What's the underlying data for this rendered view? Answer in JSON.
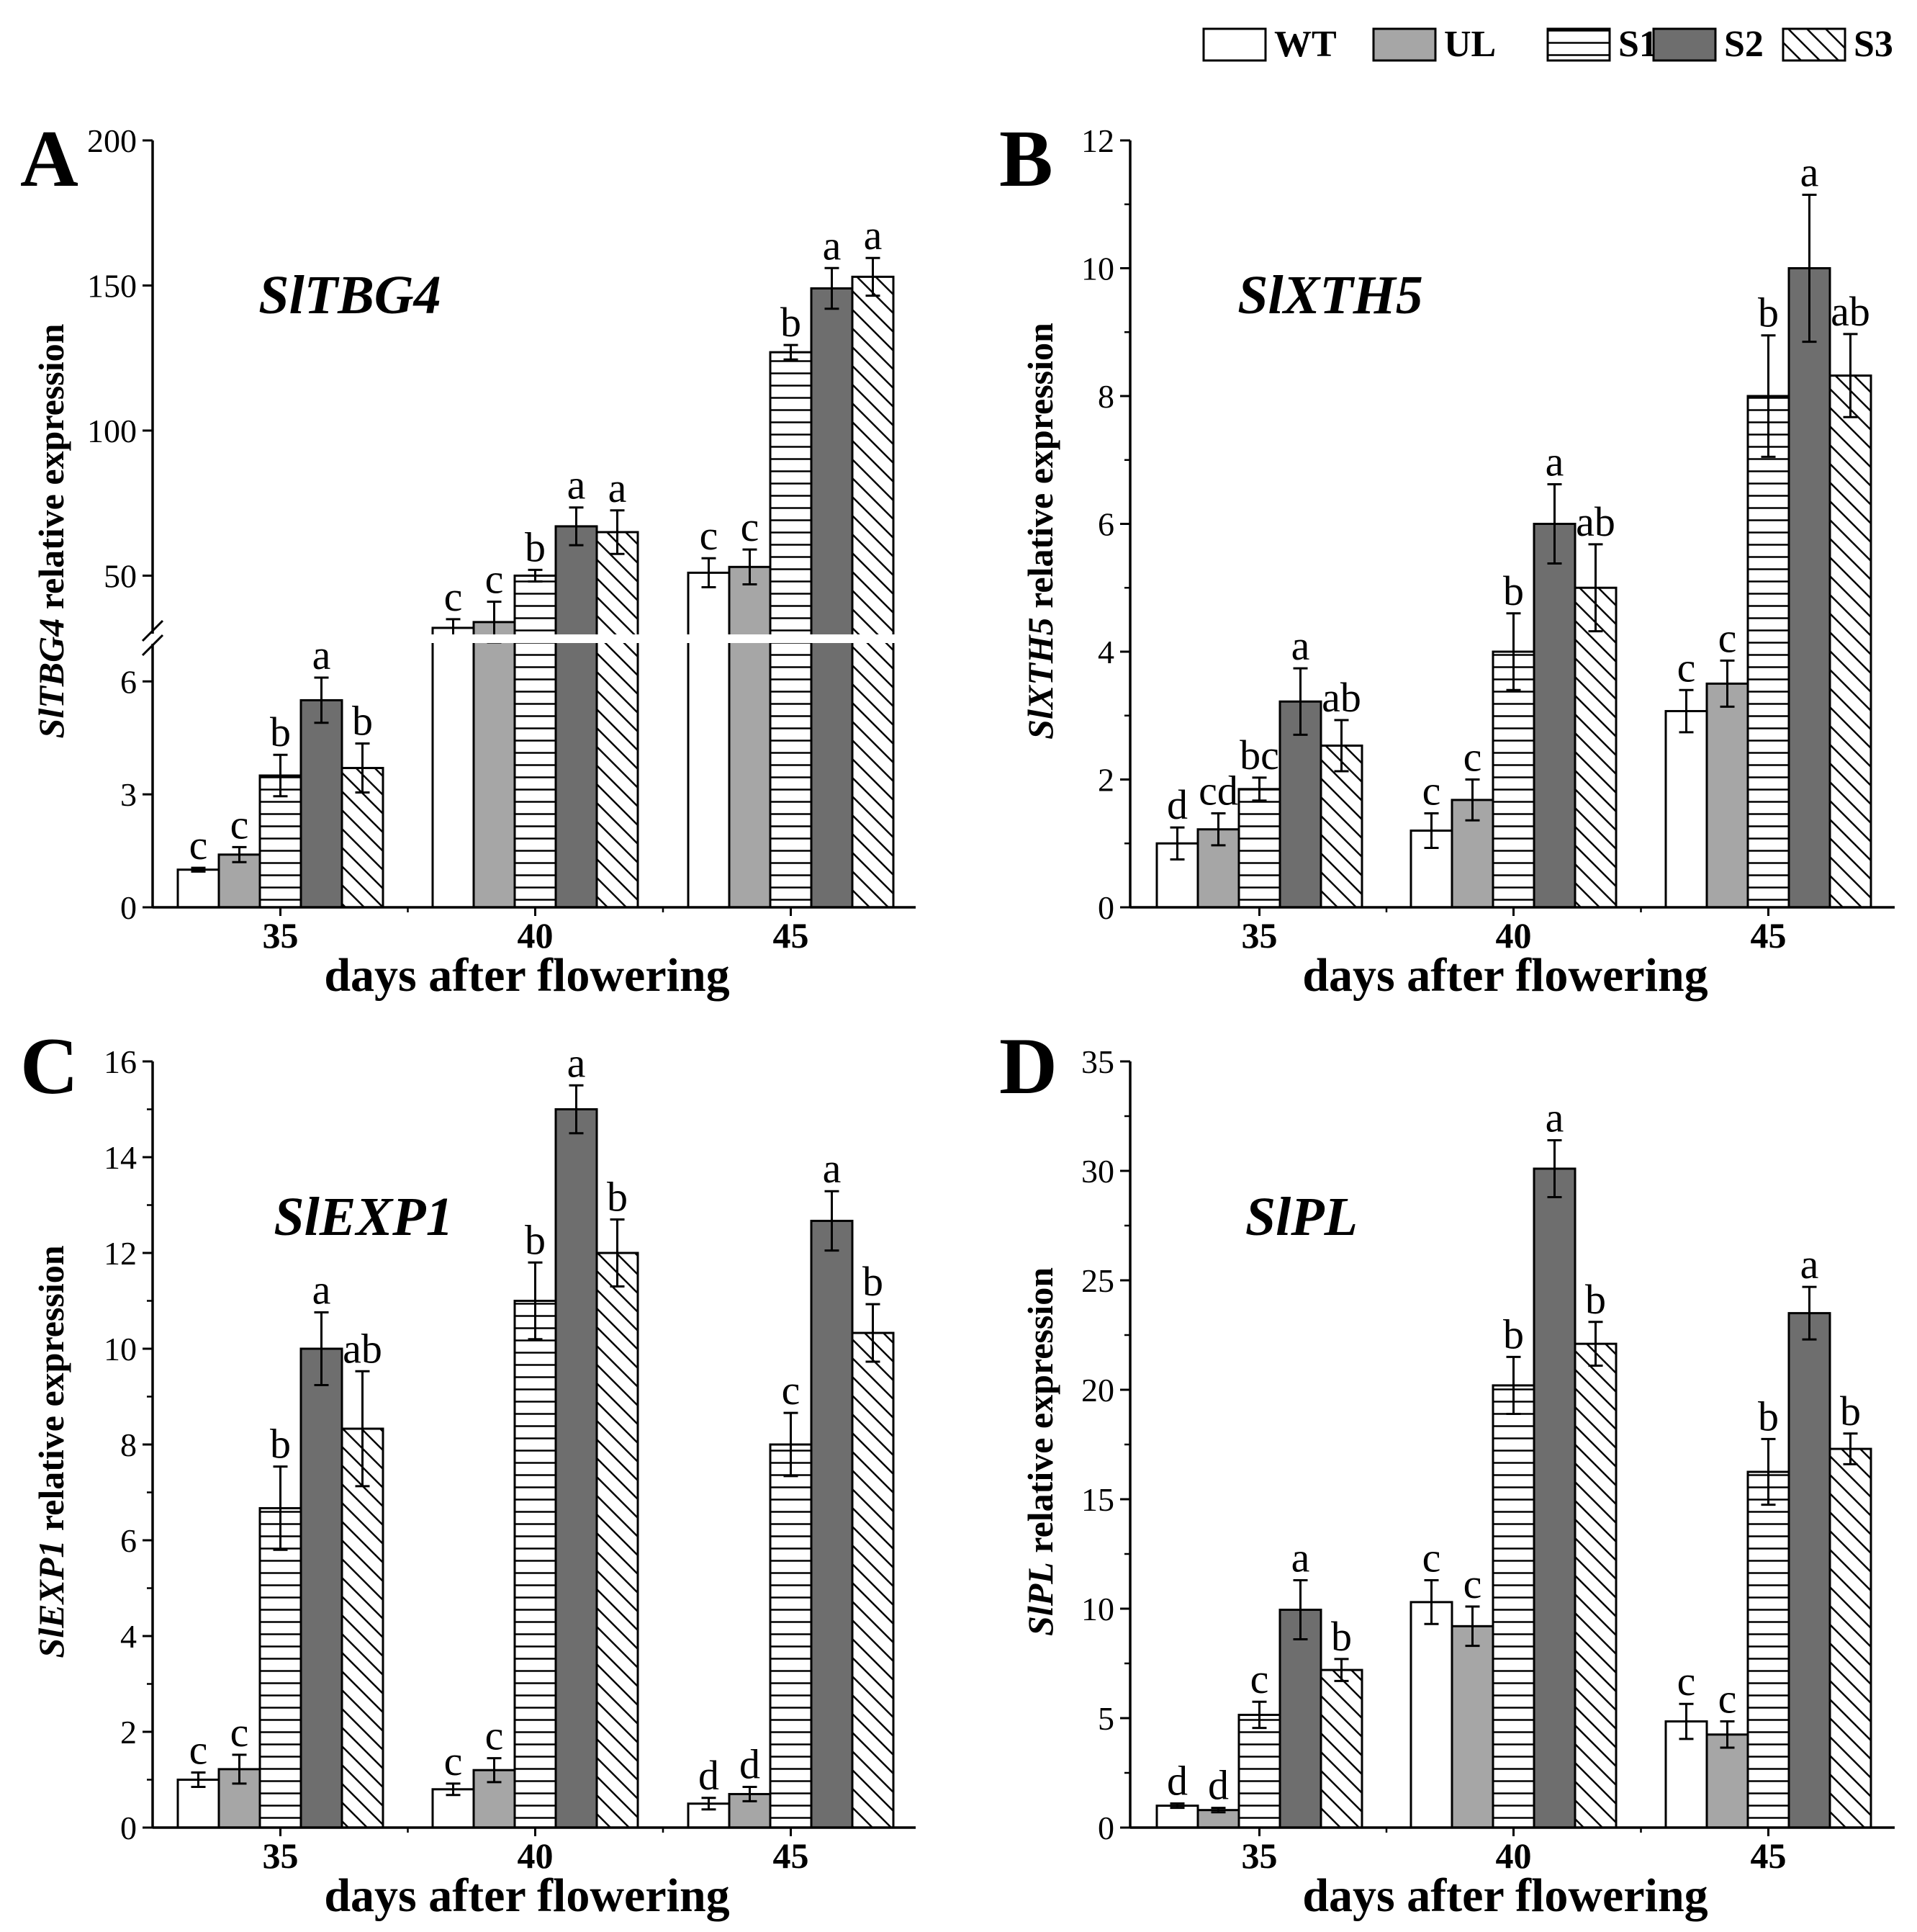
{
  "legend": [
    {
      "name": "WT",
      "pattern": "white"
    },
    {
      "name": "UL",
      "pattern": "light-gray"
    },
    {
      "name": "S1",
      "pattern": "horizontal-lines"
    },
    {
      "name": "S2",
      "pattern": "dark-gray"
    },
    {
      "name": "S3",
      "pattern": "diagonal-lines"
    }
  ],
  "colors": {
    "light_gray": "#a6a6a6",
    "dark_gray": "#6e6e6e",
    "white": "#ffffff",
    "ink": "#000000"
  },
  "chart_data": [
    {
      "panel": "A",
      "type": "bar",
      "gene": "SlTBG4",
      "ylabel_gene": "SlTBG4",
      "ylabel_rest": " relative expression",
      "xlabel": "days after flowering",
      "categories": [
        "35",
        "40",
        "45"
      ],
      "axis_break": {
        "lower": [
          0,
          7
        ],
        "upper": [
          30,
          200
        ]
      },
      "yticks_lower": [
        0,
        3,
        6
      ],
      "yticks_upper": [
        50,
        100,
        150,
        200
      ],
      "series": [
        {
          "name": "WT",
          "values": [
            1.0,
            32,
            51
          ],
          "errors": [
            0.05,
            3,
            5
          ],
          "letters": [
            "c",
            "c",
            "c"
          ]
        },
        {
          "name": "UL",
          "values": [
            1.4,
            34,
            53
          ],
          "errors": [
            0.2,
            7,
            6
          ],
          "letters": [
            "c",
            "c",
            "c"
          ]
        },
        {
          "name": "S1",
          "values": [
            3.5,
            50,
            127
          ],
          "errors": [
            0.55,
            2,
            2.5
          ],
          "letters": [
            "b",
            "b",
            "b"
          ]
        },
        {
          "name": "S2",
          "values": [
            5.5,
            67,
            149
          ],
          "errors": [
            0.6,
            6.5,
            7
          ],
          "letters": [
            "a",
            "a",
            "a"
          ]
        },
        {
          "name": "S3",
          "values": [
            3.7,
            65,
            153
          ],
          "errors": [
            0.65,
            7.5,
            6.5
          ],
          "letters": [
            "b",
            "a",
            "a"
          ]
        }
      ]
    },
    {
      "panel": "B",
      "type": "bar",
      "gene": "SlXTH5",
      "ylabel_gene": "SlXTH5",
      "ylabel_rest": " relative expression",
      "xlabel": "days after flowering",
      "categories": [
        "35",
        "40",
        "45"
      ],
      "ylim": [
        0,
        12
      ],
      "yticks": [
        0,
        2,
        4,
        6,
        8,
        10,
        12
      ],
      "series": [
        {
          "name": "WT",
          "values": [
            1.0,
            1.2,
            3.07
          ],
          "errors": [
            0.25,
            0.27,
            0.33
          ],
          "letters": [
            "d",
            "c",
            "c"
          ]
        },
        {
          "name": "UL",
          "values": [
            1.22,
            1.68,
            3.5
          ],
          "errors": [
            0.25,
            0.32,
            0.36
          ],
          "letters": [
            "cd",
            "c",
            "c"
          ]
        },
        {
          "name": "S1",
          "values": [
            1.85,
            4.0,
            8.0
          ],
          "errors": [
            0.18,
            0.6,
            0.95
          ],
          "letters": [
            "bc",
            "b",
            "b"
          ]
        },
        {
          "name": "S2",
          "values": [
            3.22,
            6.0,
            10.0
          ],
          "errors": [
            0.52,
            0.62,
            1.15
          ],
          "letters": [
            "a",
            "a",
            "a"
          ]
        },
        {
          "name": "S3",
          "values": [
            2.53,
            5.0,
            8.32
          ],
          "errors": [
            0.4,
            0.68,
            0.65
          ],
          "letters": [
            "ab",
            "ab",
            "ab"
          ]
        }
      ]
    },
    {
      "panel": "C",
      "type": "bar",
      "gene": "SlEXP1",
      "ylabel_gene": "SlEXP1",
      "ylabel_rest": " relative expression",
      "xlabel": "days after flowering",
      "categories": [
        "35",
        "40",
        "45"
      ],
      "ylim": [
        0,
        16
      ],
      "yticks": [
        0,
        2,
        4,
        6,
        8,
        10,
        12,
        14,
        16
      ],
      "series": [
        {
          "name": "WT",
          "values": [
            1.0,
            0.8,
            0.5
          ],
          "errors": [
            0.15,
            0.12,
            0.12
          ],
          "letters": [
            "c",
            "c",
            "d"
          ]
        },
        {
          "name": "UL",
          "values": [
            1.22,
            1.2,
            0.7
          ],
          "errors": [
            0.3,
            0.25,
            0.15
          ],
          "letters": [
            "c",
            "c",
            "d"
          ]
        },
        {
          "name": "S1",
          "values": [
            6.67,
            11.0,
            8.0
          ],
          "errors": [
            0.87,
            0.8,
            0.66
          ],
          "letters": [
            "b",
            "b",
            "c"
          ]
        },
        {
          "name": "S2",
          "values": [
            10.0,
            15.0,
            12.67
          ],
          "errors": [
            0.76,
            0.5,
            0.62
          ],
          "letters": [
            "a",
            "a",
            "a"
          ]
        },
        {
          "name": "S3",
          "values": [
            8.33,
            12.0,
            10.33
          ],
          "errors": [
            1.2,
            0.7,
            0.6
          ],
          "letters": [
            "ab",
            "b",
            "b"
          ]
        }
      ]
    },
    {
      "panel": "D",
      "type": "bar",
      "gene": "SlPL",
      "ylabel_gene": "SlPL",
      "ylabel_rest": " relative expression",
      "xlabel": "days after flowering",
      "categories": [
        "35",
        "40",
        "45"
      ],
      "ylim": [
        0,
        35
      ],
      "yticks": [
        0,
        5,
        10,
        15,
        20,
        25,
        30,
        35
      ],
      "series": [
        {
          "name": "WT",
          "values": [
            1.0,
            10.3,
            4.85
          ],
          "errors": [
            0.1,
            1.0,
            0.8
          ],
          "letters": [
            "d",
            "c",
            "c"
          ]
        },
        {
          "name": "UL",
          "values": [
            0.8,
            9.2,
            4.25
          ],
          "errors": [
            0.1,
            0.9,
            0.6
          ],
          "letters": [
            "d",
            "c",
            "c"
          ]
        },
        {
          "name": "S1",
          "values": [
            5.15,
            20.2,
            16.25
          ],
          "errors": [
            0.6,
            1.3,
            1.5
          ],
          "letters": [
            "c",
            "b",
            "b"
          ]
        },
        {
          "name": "S2",
          "values": [
            9.95,
            30.1,
            23.5
          ],
          "errors": [
            1.35,
            1.3,
            1.2
          ],
          "letters": [
            "a",
            "a",
            "a"
          ]
        },
        {
          "name": "S3",
          "values": [
            7.2,
            22.1,
            17.3
          ],
          "errors": [
            0.5,
            1.0,
            0.7
          ],
          "letters": [
            "b",
            "b",
            "b"
          ]
        }
      ]
    }
  ]
}
